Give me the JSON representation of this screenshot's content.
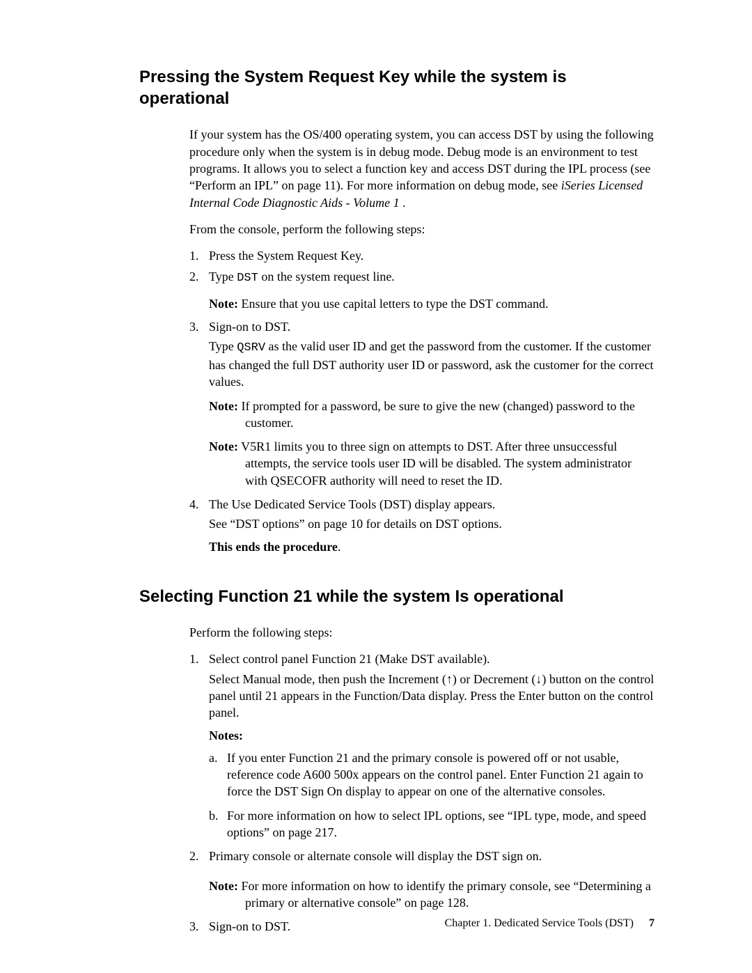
{
  "section1": {
    "heading": "Pressing the System Request Key while the system is operational",
    "intro_pre": "If your system has the OS/400 operating system, you can access DST by using the following procedure only when the system is in debug mode. Debug mode is an environment to test programs. It allows you to select a function key and access DST during the IPL process (see “Perform an IPL” on page 11). For more information on debug mode, see ",
    "intro_italic": "iSeries Licensed Internal Code Diagnostic Aids - Volume 1",
    "intro_post": " .",
    "lead": "From the console, perform the following steps:",
    "step1": "Press the System Request Key.",
    "step2_pre": "Type ",
    "step2_code": "DST",
    "step2_post": " on the system request line.",
    "step2_note_label": "Note:",
    "step2_note_body": " Ensure that you use capital letters to type the DST command.",
    "step3": "Sign-on to DST.",
    "step3_p_pre": "Type ",
    "step3_p_code": "QSRV",
    "step3_p_post": " as the valid user ID and get the password from the customer. If the customer has changed the full DST authority user ID or password, ask the customer for the correct values.",
    "step3_note1_label": "Note:",
    "step3_note1_body": " If prompted for a password, be sure to give the new (changed) password to the customer.",
    "step3_note2_label": "Note:",
    "step3_note2_body": " V5R1 limits you to three sign on attempts to DST. After three unsuccessful attempts, the service tools user ID will be disabled. The system administrator with QSECOFR authority will need to reset the ID.",
    "step4_a": "The Use Dedicated Service Tools (DST) display appears.",
    "step4_b": "See “DST options” on page 10 for details on DST options.",
    "step4_c": "This ends the procedure",
    "step4_c_post": "."
  },
  "section2": {
    "heading": "Selecting Function 21 while the system Is operational",
    "lead": "Perform the following steps:",
    "step1_a": "Select control panel Function 21 (Make DST available).",
    "step1_b": "Select Manual mode, then push the Increment (↑) or Decrement (↓) button on the control panel until 21 appears in the Function/Data display. Press the Enter button on the control panel.",
    "notes_label": "Notes:",
    "note_a": "If you enter Function 21 and the primary console is powered off or not usable, reference code A600 500x appears on the control panel. Enter Function 21 again to force the DST Sign On display to appear on one of the alternative consoles.",
    "note_b": "For more information on how to select IPL options, see “IPL type, mode, and speed options” on page 217.",
    "step2": "Primary console or alternate console will display the DST sign on.",
    "step2_note_label": "Note:",
    "step2_note_body": " For more information on how to identify the primary console, see “Determining a primary or alternative console” on page 128.",
    "step3": "Sign-on to DST."
  },
  "footer": {
    "chapter": "Chapter 1. Dedicated Service Tools (DST)",
    "page": "7"
  },
  "labels": {
    "n1": "1.",
    "n2": "2.",
    "n3": "3.",
    "n4": "4.",
    "la": "a.",
    "lb": "b."
  }
}
